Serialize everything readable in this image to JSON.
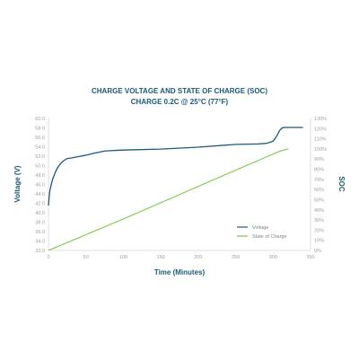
{
  "chart_data": {
    "type": "line",
    "title": "CHARGE VOLTAGE AND STATE OF CHARGE (SOC)",
    "subtitle": "CHARGE 0.2C @ 25°C (77°F)",
    "xlabel": "Time (Minutes)",
    "ylabel": "Voltage (V)",
    "y2label": "SOC",
    "xlim": [
      0,
      350
    ],
    "ylim": [
      32,
      60
    ],
    "y2lim": [
      0,
      130
    ],
    "x_ticks": [
      0,
      50,
      100,
      150,
      200,
      250,
      300,
      350
    ],
    "x_tick_labels": [
      "0",
      "50",
      "100",
      "150",
      "200",
      "250",
      "300",
      "350"
    ],
    "y_ticks": [
      32,
      34,
      36,
      38,
      40,
      42,
      44,
      46,
      48,
      50,
      52,
      54,
      56,
      58,
      60
    ],
    "y_tick_labels": [
      "32.0",
      "34.0",
      "36.0",
      "38.0",
      "40.0",
      "42.0",
      "44.0",
      "46.0",
      "48.0",
      "50.0",
      "52.0",
      "54.0",
      "56.0",
      "58.0",
      "60.0"
    ],
    "y2_ticks": [
      0,
      10,
      20,
      30,
      40,
      50,
      60,
      70,
      80,
      90,
      100,
      110,
      120,
      130
    ],
    "y2_tick_labels": [
      "0%",
      "10%",
      "20%",
      "30%",
      "40%",
      "50%",
      "60%",
      "70%",
      "80%",
      "90%",
      "100%",
      "110%",
      "120%",
      "130%"
    ],
    "grid": false,
    "legend_position": "right-middle",
    "series": [
      {
        "name": "Voltage",
        "axis": "left",
        "color": "#1b5a78",
        "x": [
          0,
          1,
          2,
          4,
          6,
          9,
          12,
          16,
          20,
          25,
          30,
          40,
          50,
          60,
          75,
          100,
          150,
          200,
          250,
          280,
          290,
          295,
          300,
          303,
          306,
          309,
          312,
          315,
          320,
          340
        ],
        "y": [
          41.5,
          43.5,
          44.8,
          46.2,
          47.3,
          48.5,
          49.5,
          50.4,
          51.0,
          51.5,
          51.6,
          51.9,
          52.2,
          52.6,
          53.1,
          53.3,
          53.5,
          53.9,
          54.5,
          54.6,
          54.7,
          54.9,
          55.2,
          55.8,
          56.6,
          57.5,
          58.0,
          58.1,
          58.1,
          58.1
        ]
      },
      {
        "name": "State of Charge",
        "axis": "right",
        "color": "#7ac943",
        "x": [
          0,
          50,
          100,
          150,
          200,
          250,
          300,
          310,
          320
        ],
        "y": [
          0,
          15.5,
          31,
          47,
          63,
          79,
          95,
          98,
          100
        ]
      }
    ]
  }
}
